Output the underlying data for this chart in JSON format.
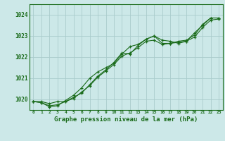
{
  "title": "Graphe pression niveau de la mer (hPa)",
  "xlabel_hours": [
    0,
    1,
    2,
    3,
    4,
    5,
    6,
    7,
    8,
    9,
    10,
    11,
    12,
    13,
    14,
    15,
    16,
    17,
    18,
    19,
    20,
    21,
    22,
    23
  ],
  "ylim": [
    1019.5,
    1024.5
  ],
  "yticks": [
    1020,
    1021,
    1022,
    1023,
    1024
  ],
  "background_color": "#cce8e8",
  "grid_color": "#aacccc",
  "line_color": "#1a6b1a",
  "line1": [
    1019.9,
    1019.9,
    1019.8,
    1019.9,
    1019.9,
    1020.1,
    1020.3,
    1020.7,
    1021.1,
    1021.4,
    1021.75,
    1022.2,
    1022.15,
    1022.55,
    1022.85,
    1023.0,
    1022.65,
    1022.65,
    1022.75,
    1022.8,
    1023.05,
    1023.55,
    1023.85,
    1023.85
  ],
  "line2": [
    1019.9,
    1019.85,
    1019.7,
    1019.75,
    1019.9,
    1020.05,
    1020.35,
    1020.65,
    1021.05,
    1021.35,
    1021.65,
    1022.05,
    1022.2,
    1022.45,
    1022.75,
    1022.8,
    1022.6,
    1022.65,
    1022.7,
    1022.75,
    1022.95,
    1023.4,
    1023.75,
    1023.8
  ],
  "line3": [
    1019.9,
    1019.85,
    1019.65,
    1019.7,
    1019.95,
    1020.2,
    1020.55,
    1021.0,
    1021.3,
    1021.5,
    1021.7,
    1022.15,
    1022.5,
    1022.6,
    1022.85,
    1023.0,
    1022.8,
    1022.75,
    1022.65,
    1022.75,
    1023.15,
    1023.5,
    1023.85,
    1023.85
  ],
  "marker": "+"
}
